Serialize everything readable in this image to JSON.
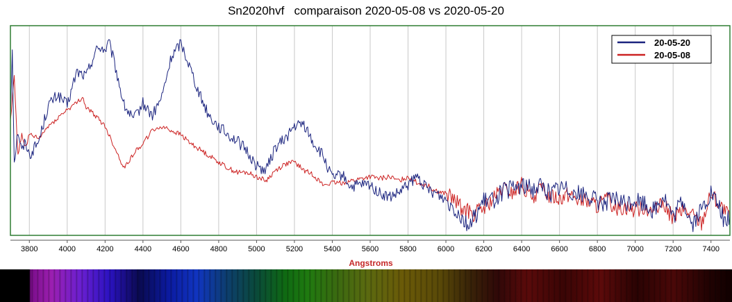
{
  "chart_data": {
    "type": "line",
    "title": "Sn2020hvf   comparaison 2020-05-08 vs 2020-05-20",
    "xlabel": "Angstroms",
    "ylabel": "",
    "xlim": [
      3700,
      7500
    ],
    "ylim": [
      0,
      1
    ],
    "x_ticks": [
      3800,
      4000,
      4200,
      4400,
      4600,
      4800,
      5000,
      5200,
      5400,
      5600,
      5800,
      6000,
      6200,
      6400,
      6600,
      6800,
      7000,
      7200,
      7400
    ],
    "x_tick_labels": [
      "3800",
      "4000",
      "4200",
      "4400",
      "4600",
      "4800",
      "5000",
      "5200",
      "5400",
      "5600",
      "5800",
      "6000",
      "6200",
      "6400",
      "6600",
      "6800",
      "7000",
      "7200",
      "7400"
    ],
    "grid": true,
    "legend_position": "top-right",
    "series": [
      {
        "name": "20-05-20",
        "color": "#1a237e",
        "x": [
          3700,
          3710,
          3720,
          3740,
          3760,
          3780,
          3800,
          3850,
          3900,
          3950,
          4000,
          4050,
          4100,
          4150,
          4180,
          4200,
          4220,
          4250,
          4300,
          4350,
          4400,
          4450,
          4500,
          4550,
          4600,
          4650,
          4700,
          4750,
          4800,
          4850,
          4900,
          4950,
          5000,
          5050,
          5100,
          5150,
          5200,
          5250,
          5300,
          5350,
          5400,
          5450,
          5500,
          5550,
          5600,
          5650,
          5700,
          5750,
          5800,
          5850,
          5900,
          5950,
          6000,
          6050,
          6100,
          6130,
          6150,
          6200,
          6250,
          6300,
          6350,
          6400,
          6450,
          6500,
          6550,
          6600,
          6650,
          6700,
          6750,
          6800,
          6850,
          6900,
          6950,
          7000,
          7050,
          7100,
          7150,
          7200,
          7250,
          7300,
          7350,
          7400,
          7450,
          7480,
          7500
        ],
        "y": [
          0.57,
          0.9,
          0.35,
          0.5,
          0.4,
          0.45,
          0.38,
          0.45,
          0.62,
          0.67,
          0.62,
          0.78,
          0.76,
          0.88,
          0.9,
          0.88,
          0.92,
          0.82,
          0.62,
          0.55,
          0.63,
          0.57,
          0.66,
          0.85,
          0.92,
          0.8,
          0.67,
          0.57,
          0.52,
          0.48,
          0.45,
          0.4,
          0.33,
          0.31,
          0.42,
          0.46,
          0.52,
          0.53,
          0.44,
          0.38,
          0.27,
          0.29,
          0.23,
          0.24,
          0.24,
          0.2,
          0.18,
          0.2,
          0.24,
          0.28,
          0.22,
          0.2,
          0.17,
          0.13,
          0.07,
          0.04,
          0.09,
          0.16,
          0.17,
          0.21,
          0.22,
          0.24,
          0.22,
          0.24,
          0.2,
          0.23,
          0.22,
          0.2,
          0.19,
          0.16,
          0.16,
          0.17,
          0.15,
          0.17,
          0.15,
          0.12,
          0.19,
          0.08,
          0.17,
          0.05,
          0.12,
          0.2,
          0.12,
          0.05,
          0.1
        ]
      },
      {
        "name": "20-05-08",
        "color": "#cc2222",
        "x": [
          3700,
          3720,
          3740,
          3760,
          3780,
          3800,
          3850,
          3900,
          3950,
          4000,
          4050,
          4080,
          4100,
          4150,
          4200,
          4250,
          4300,
          4350,
          4400,
          4450,
          4500,
          4550,
          4600,
          4650,
          4700,
          4750,
          4800,
          4850,
          4900,
          4950,
          5000,
          5050,
          5100,
          5150,
          5200,
          5250,
          5300,
          5350,
          5400,
          5450,
          5500,
          5550,
          5600,
          5650,
          5700,
          5750,
          5800,
          5850,
          5900,
          5950,
          6000,
          6050,
          6100,
          6150,
          6200,
          6250,
          6300,
          6350,
          6400,
          6450,
          6500,
          6550,
          6600,
          6650,
          6700,
          6750,
          6800,
          6850,
          6900,
          6950,
          7000,
          7050,
          7100,
          7150,
          7200,
          7250,
          7300,
          7350,
          7400,
          7450,
          7500
        ],
        "y": [
          0.55,
          0.76,
          0.38,
          0.48,
          0.42,
          0.48,
          0.46,
          0.52,
          0.56,
          0.6,
          0.63,
          0.66,
          0.61,
          0.57,
          0.52,
          0.42,
          0.32,
          0.39,
          0.44,
          0.5,
          0.52,
          0.5,
          0.48,
          0.44,
          0.41,
          0.38,
          0.35,
          0.32,
          0.3,
          0.3,
          0.28,
          0.26,
          0.31,
          0.34,
          0.35,
          0.31,
          0.29,
          0.24,
          0.25,
          0.25,
          0.26,
          0.27,
          0.28,
          0.27,
          0.28,
          0.26,
          0.28,
          0.25,
          0.24,
          0.21,
          0.2,
          0.16,
          0.12,
          0.1,
          0.13,
          0.17,
          0.22,
          0.2,
          0.24,
          0.18,
          0.22,
          0.19,
          0.18,
          0.2,
          0.17,
          0.16,
          0.14,
          0.17,
          0.13,
          0.14,
          0.12,
          0.14,
          0.11,
          0.15,
          0.08,
          0.12,
          0.1,
          0.06,
          0.2,
          0.14,
          0.08
        ]
      }
    ]
  },
  "legend": {
    "items": [
      {
        "label": "20-05-20",
        "color": "#1a237e"
      },
      {
        "label": "20-05-08",
        "color": "#cc2222"
      }
    ]
  },
  "colors": {
    "frame": "#2e7d32",
    "grid": "#c8c8c8",
    "xlabel": "#c62828",
    "legend_border": "#000000"
  }
}
